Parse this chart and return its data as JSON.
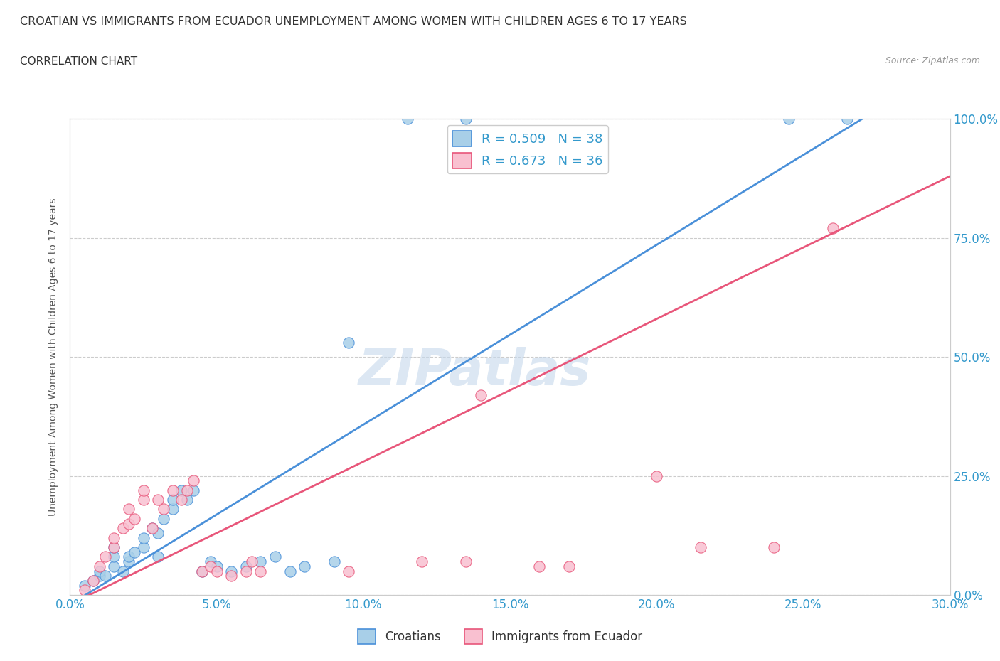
{
  "title": "CROATIAN VS IMMIGRANTS FROM ECUADOR UNEMPLOYMENT AMONG WOMEN WITH CHILDREN AGES 6 TO 17 YEARS",
  "subtitle": "CORRELATION CHART",
  "source": "Source: ZipAtlas.com",
  "xlabel_ticks": [
    "0.0%",
    "5.0%",
    "10.0%",
    "15.0%",
    "20.0%",
    "25.0%",
    "30.0%"
  ],
  "ylabel_ticks_right": [
    "0.0%",
    "25.0%",
    "50.0%",
    "75.0%",
    "100.0%"
  ],
  "xlim": [
    0,
    0.3
  ],
  "ylim": [
    0,
    1.0
  ],
  "croatian_color": "#a8cfe8",
  "ecuador_color": "#f9c0d0",
  "croatian_line_color": "#4a90d9",
  "ecuador_line_color": "#e8567a",
  "r_croatian": 0.509,
  "n_croatian": 38,
  "r_ecuador": 0.673,
  "n_ecuador": 36,
  "watermark": "ZIPatlas",
  "watermark_color": "#c8d8e8",
  "croatian_scatter": [
    [
      0.005,
      0.02
    ],
    [
      0.008,
      0.03
    ],
    [
      0.01,
      0.04
    ],
    [
      0.01,
      0.05
    ],
    [
      0.012,
      0.04
    ],
    [
      0.015,
      0.06
    ],
    [
      0.015,
      0.08
    ],
    [
      0.015,
      0.1
    ],
    [
      0.018,
      0.05
    ],
    [
      0.02,
      0.07
    ],
    [
      0.02,
      0.08
    ],
    [
      0.022,
      0.09
    ],
    [
      0.025,
      0.1
    ],
    [
      0.025,
      0.12
    ],
    [
      0.028,
      0.14
    ],
    [
      0.03,
      0.08
    ],
    [
      0.03,
      0.13
    ],
    [
      0.032,
      0.16
    ],
    [
      0.035,
      0.18
    ],
    [
      0.035,
      0.2
    ],
    [
      0.038,
      0.22
    ],
    [
      0.04,
      0.2
    ],
    [
      0.042,
      0.22
    ],
    [
      0.045,
      0.05
    ],
    [
      0.048,
      0.07
    ],
    [
      0.05,
      0.06
    ],
    [
      0.055,
      0.05
    ],
    [
      0.06,
      0.06
    ],
    [
      0.065,
      0.07
    ],
    [
      0.07,
      0.08
    ],
    [
      0.075,
      0.05
    ],
    [
      0.08,
      0.06
    ],
    [
      0.09,
      0.07
    ],
    [
      0.095,
      0.53
    ],
    [
      0.115,
      1.0
    ],
    [
      0.135,
      1.0
    ],
    [
      0.245,
      1.0
    ],
    [
      0.265,
      1.0
    ]
  ],
  "ecuador_scatter": [
    [
      0.005,
      0.01
    ],
    [
      0.008,
      0.03
    ],
    [
      0.01,
      0.06
    ],
    [
      0.012,
      0.08
    ],
    [
      0.015,
      0.1
    ],
    [
      0.015,
      0.12
    ],
    [
      0.018,
      0.14
    ],
    [
      0.02,
      0.15
    ],
    [
      0.02,
      0.18
    ],
    [
      0.022,
      0.16
    ],
    [
      0.025,
      0.2
    ],
    [
      0.025,
      0.22
    ],
    [
      0.028,
      0.14
    ],
    [
      0.03,
      0.2
    ],
    [
      0.032,
      0.18
    ],
    [
      0.035,
      0.22
    ],
    [
      0.038,
      0.2
    ],
    [
      0.04,
      0.22
    ],
    [
      0.042,
      0.24
    ],
    [
      0.045,
      0.05
    ],
    [
      0.048,
      0.06
    ],
    [
      0.05,
      0.05
    ],
    [
      0.055,
      0.04
    ],
    [
      0.06,
      0.05
    ],
    [
      0.062,
      0.07
    ],
    [
      0.065,
      0.05
    ],
    [
      0.095,
      0.05
    ],
    [
      0.12,
      0.07
    ],
    [
      0.135,
      0.07
    ],
    [
      0.14,
      0.42
    ],
    [
      0.16,
      0.06
    ],
    [
      0.17,
      0.06
    ],
    [
      0.2,
      0.25
    ],
    [
      0.215,
      0.1
    ],
    [
      0.24,
      0.1
    ],
    [
      0.26,
      0.77
    ]
  ],
  "croatian_line": {
    "x0": 0.0,
    "y0": -0.02,
    "x1": 0.27,
    "y1": 1.0
  },
  "ecuador_line": {
    "x0": 0.0,
    "y0": -0.02,
    "x1": 0.3,
    "y1": 0.88
  }
}
